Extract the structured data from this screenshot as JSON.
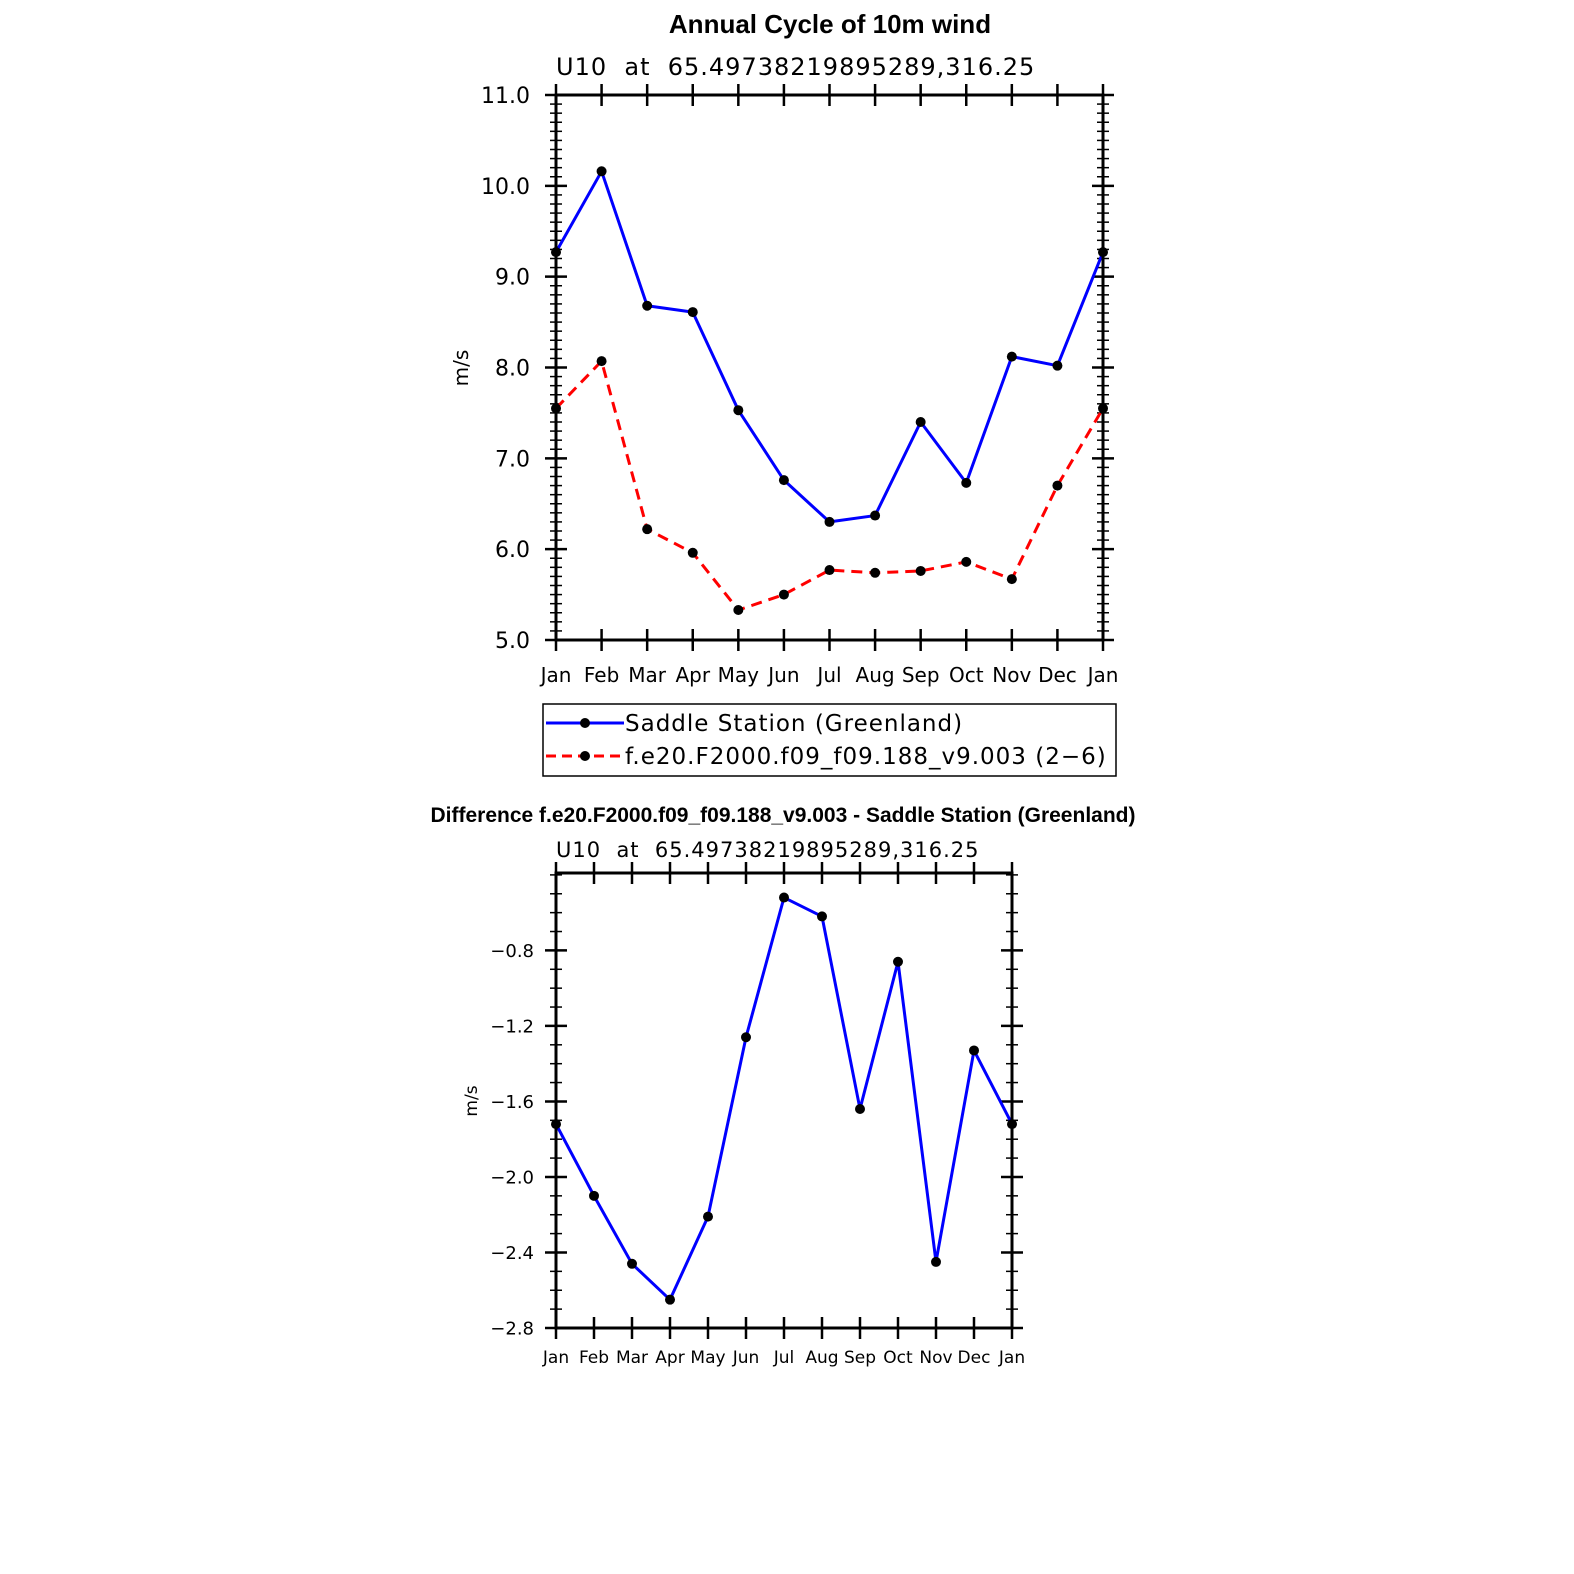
{
  "chart_data": [
    {
      "type": "line",
      "title": "Annual Cycle of 10m wind",
      "subtitle": "U10  at  65.49738219895289,316.25",
      "ylabel": "m/s",
      "xlabel": "",
      "categories": [
        "Jan",
        "Feb",
        "Mar",
        "Apr",
        "May",
        "Jun",
        "Jul",
        "Aug",
        "Sep",
        "Oct",
        "Nov",
        "Dec",
        "Jan"
      ],
      "ylim": [
        5.0,
        11.0
      ],
      "yticks": [
        5.0,
        6.0,
        7.0,
        8.0,
        9.0,
        10.0,
        11.0
      ],
      "ytick_labels": [
        "5.0",
        "6.0",
        "7.0",
        "8.0",
        "9.0",
        "10.0",
        "11.0"
      ],
      "series": [
        {
          "name": "Saddle Station (Greenland)",
          "color": "#0000ff",
          "dash": "solid",
          "values": [
            9.27,
            10.16,
            8.68,
            8.61,
            7.53,
            6.76,
            6.3,
            6.37,
            7.4,
            6.73,
            8.12,
            8.02,
            9.27
          ]
        },
        {
          "name": "f.e20.F2000.f09_f09.188_v9.003 (2−6)",
          "color": "#ff0000",
          "dash": "dashed",
          "values": [
            7.55,
            8.07,
            6.22,
            5.96,
            5.33,
            5.5,
            5.77,
            5.74,
            5.76,
            5.86,
            5.67,
            6.7,
            7.55
          ]
        }
      ],
      "legend": {
        "placement": "bottom"
      }
    },
    {
      "type": "line",
      "title": "Difference f.e20.F2000.f09_f09.188_v9.003 - Saddle Station (Greenland)",
      "subtitle": "U10  at  65.49738219895289,316.25",
      "ylabel": "m/s",
      "xlabel": "",
      "categories": [
        "Jan",
        "Feb",
        "Mar",
        "Apr",
        "May",
        "Jun",
        "Jul",
        "Aug",
        "Sep",
        "Oct",
        "Nov",
        "Dec",
        "Jan"
      ],
      "ylim": [
        -2.8,
        -0.39
      ],
      "yticks": [
        -2.8,
        -2.4,
        -2.0,
        -1.6,
        -1.2,
        -0.8
      ],
      "ytick_labels": [
        "−2.8",
        "−2.4",
        "−2.0",
        "−1.6",
        "−1.2",
        "−0.8"
      ],
      "series": [
        {
          "name": "Difference",
          "color": "#0000ff",
          "dash": "solid",
          "values": [
            -1.72,
            -2.1,
            -2.46,
            -2.65,
            -2.21,
            -1.26,
            -0.52,
            -0.62,
            -1.64,
            -0.86,
            -2.45,
            -1.33,
            -1.72
          ]
        }
      ]
    }
  ]
}
